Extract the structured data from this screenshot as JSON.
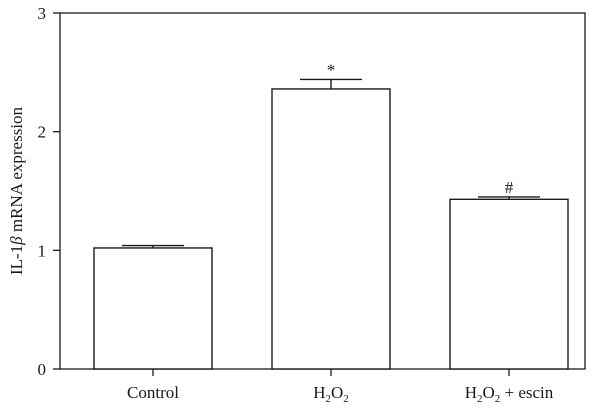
{
  "chart_data": {
    "type": "bar",
    "ylabel": {
      "pre": "IL-1",
      "greek": "β",
      "post": " mRNA expression"
    },
    "ylim": [
      0,
      3
    ],
    "yticks": [
      0,
      1,
      2,
      3
    ],
    "grid": false,
    "categories": [
      {
        "parts": [
          {
            "t": "Control"
          }
        ]
      },
      {
        "parts": [
          {
            "t": "H"
          },
          {
            "t": "2",
            "sub": true
          },
          {
            "t": "O"
          },
          {
            "t": "2",
            "sub": true
          }
        ]
      },
      {
        "parts": [
          {
            "t": "H"
          },
          {
            "t": "2",
            "sub": true
          },
          {
            "t": "O"
          },
          {
            "t": "2",
            "sub": true
          },
          {
            "t": " + escin"
          }
        ]
      }
    ],
    "values": [
      1.02,
      2.36,
      1.43
    ],
    "errors": [
      0.02,
      0.08,
      0.02
    ],
    "annotations": [
      "",
      "*",
      "#"
    ],
    "colors": {
      "bar_fill": "#ffffff",
      "stroke": "#1a1a1a"
    }
  }
}
